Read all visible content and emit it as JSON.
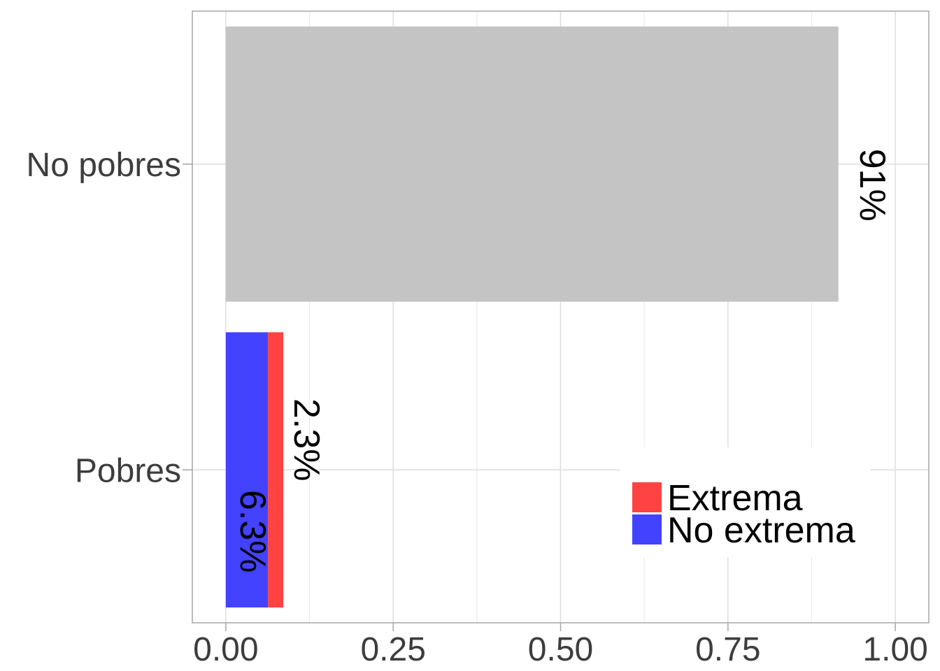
{
  "chart_data": {
    "type": "bar",
    "orientation": "horizontal",
    "stacked": true,
    "categories": [
      "Pobres",
      "No pobres"
    ],
    "xlim": [
      -0.05,
      1.05
    ],
    "x_ticks": [
      0.0,
      0.25,
      0.5,
      0.75,
      1.0
    ],
    "x_tick_labels": [
      "0.00",
      "0.25",
      "0.50",
      "0.75",
      "1.00"
    ],
    "grid": true,
    "legend_position": "bottom-right",
    "series": [
      {
        "name": "No extrema",
        "color": "#4242FF",
        "values": [
          0.063,
          null
        ],
        "labels": [
          "6.3%",
          ""
        ]
      },
      {
        "name": "Extrema",
        "color": "#FF4242",
        "values": [
          0.023,
          null
        ],
        "labels": [
          "2.3%",
          ""
        ]
      },
      {
        "name": "",
        "color": "#C4C4C4",
        "values": [
          null,
          0.915
        ],
        "labels": [
          "",
          "91%"
        ]
      }
    ],
    "legend": [
      {
        "name": "Extrema",
        "color": "#FF4242"
      },
      {
        "name": "No extrema",
        "color": "#4242FF"
      }
    ]
  }
}
